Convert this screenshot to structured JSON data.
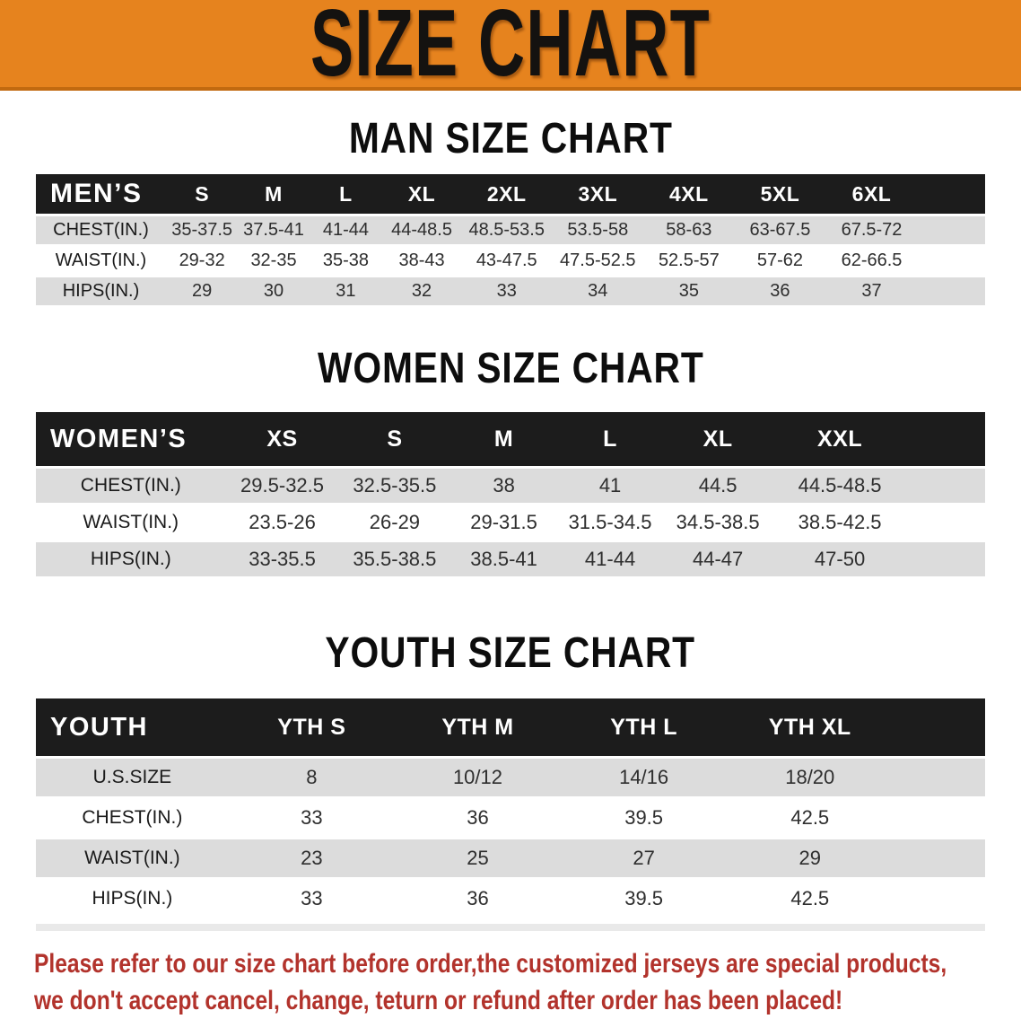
{
  "banner": {
    "title": "SIZE CHART"
  },
  "sections": [
    {
      "heading": "MAN SIZE CHART",
      "table": {
        "title": "MEN’S",
        "columns": [
          "S",
          "M",
          "L",
          "XL",
          "2XL",
          "3XL",
          "4XL",
          "5XL",
          "6XL"
        ],
        "rows": [
          {
            "label": "CHEST(IN.)",
            "values": [
              "35-37.5",
              "37.5-41",
              "41-44",
              "44-48.5",
              "48.5-53.5",
              "53.5-58",
              "58-63",
              "63-67.5",
              "67.5-72"
            ]
          },
          {
            "label": "WAIST(IN.)",
            "values": [
              "29-32",
              "32-35",
              "35-38",
              "38-43",
              "43-47.5",
              "47.5-52.5",
              "52.5-57",
              "57-62",
              "62-66.5"
            ]
          },
          {
            "label": "HIPS(IN.)",
            "values": [
              "29",
              "30",
              "31",
              "32",
              "33",
              "34",
              "35",
              "36",
              "37"
            ]
          }
        ]
      }
    },
    {
      "heading": "WOMEN SIZE CHART",
      "table": {
        "title": "WOMEN’S",
        "columns": [
          "XS",
          "S",
          "M",
          "L",
          "XL",
          "XXL"
        ],
        "rows": [
          {
            "label": "CHEST(IN.)",
            "values": [
              "29.5-32.5",
              "32.5-35.5",
              "38",
              "41",
              "44.5",
              "44.5-48.5"
            ]
          },
          {
            "label": "WAIST(IN.)",
            "values": [
              "23.5-26",
              "26-29",
              "29-31.5",
              "31.5-34.5",
              "34.5-38.5",
              "38.5-42.5"
            ]
          },
          {
            "label": "HIPS(IN.)",
            "values": [
              "33-35.5",
              "35.5-38.5",
              "38.5-41",
              "41-44",
              "44-47",
              "47-50"
            ]
          }
        ]
      }
    },
    {
      "heading": "YOUTH SIZE CHART",
      "table": {
        "title": "YOUTH",
        "columns": [
          "YTH S",
          "YTH M",
          "YTH L",
          "YTH XL"
        ],
        "rows": [
          {
            "label": "U.S.SIZE",
            "values": [
              "8",
              "10/12",
              "14/16",
              "18/20"
            ]
          },
          {
            "label": "CHEST(IN.)",
            "values": [
              "33",
              "36",
              "39.5",
              "42.5"
            ]
          },
          {
            "label": "WAIST(IN.)",
            "values": [
              "23",
              "25",
              "27",
              "29"
            ]
          },
          {
            "label": "HIPS(IN.)",
            "values": [
              "33",
              "36",
              "39.5",
              "42.5"
            ]
          }
        ]
      }
    }
  ],
  "note": {
    "line1": "Please refer to our size chart before order,the customized jerseys are special products,",
    "line2": "we don't accept cancel, change, teturn or refund after order has been placed!"
  },
  "colors": {
    "banner_bg": "#E6831E",
    "banner_edge": "#C1690F",
    "header_bar": "#1C1C1C",
    "row_alt_gray": "#DCDCDC",
    "note_red": "#B2332C"
  }
}
